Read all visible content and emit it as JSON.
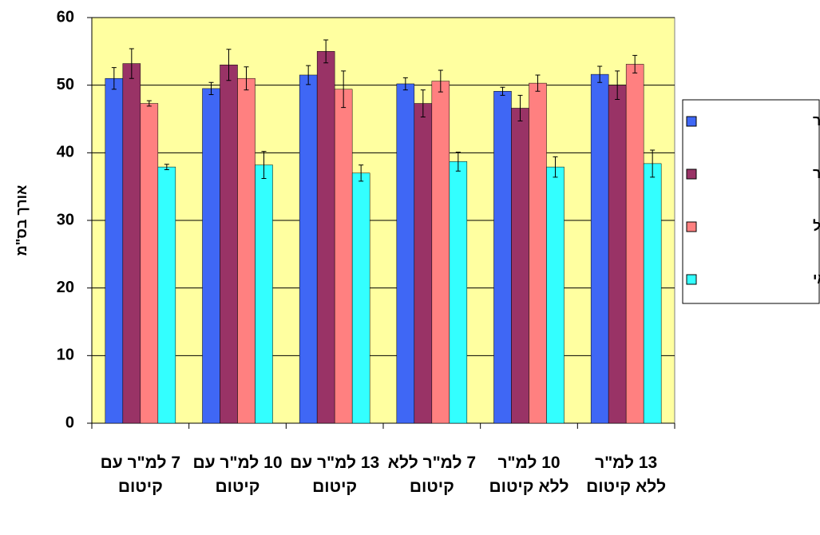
{
  "chart_data": {
    "type": "bar",
    "ylabel": "אורך בס\"מ",
    "categories": [
      "7 למ\"ר עם קיטום",
      "10 למ\"ר עם קיטום",
      "13 למ\"ר עם קיטום",
      "7 למ\"ר ללא קיטום",
      "10 למ\"ר ללא קיטום",
      "13 למ\"ר ללא קיטום"
    ],
    "series": [
      {
        "name": "דצמבר-ינואר",
        "color": "#3f67f5",
        "values": [
          51,
          49.5,
          51.5,
          50.2,
          49.1,
          51.6
        ],
        "errors": [
          1.6,
          0.9,
          1.4,
          0.9,
          0.6,
          1.2
        ]
      },
      {
        "name": "פברואר",
        "color": "#993366",
        "values": [
          53.2,
          53,
          55,
          47.3,
          46.6,
          50
        ],
        "errors": [
          2.2,
          2.3,
          1.7,
          2,
          1.9,
          2.1
        ]
      },
      {
        "name": "מרץ-אפריל",
        "color": "#ff8080",
        "values": [
          47.3,
          51,
          49.4,
          50.6,
          50.3,
          53.1
        ],
        "errors": [
          0.4,
          1.7,
          2.7,
          1.6,
          1.2,
          1.3
        ]
      },
      {
        "name": "מאי",
        "color": "#33ffff",
        "values": [
          37.9,
          38.2,
          37,
          38.7,
          37.9,
          38.4
        ],
        "errors": [
          0.4,
          2,
          1.2,
          1.4,
          1.5,
          2
        ]
      }
    ],
    "ylim": [
      0,
      60
    ],
    "yticks": [
      0,
      10,
      20,
      30,
      40,
      50,
      60
    ],
    "grid": true,
    "legend": "right",
    "background": "#ffffa0"
  }
}
